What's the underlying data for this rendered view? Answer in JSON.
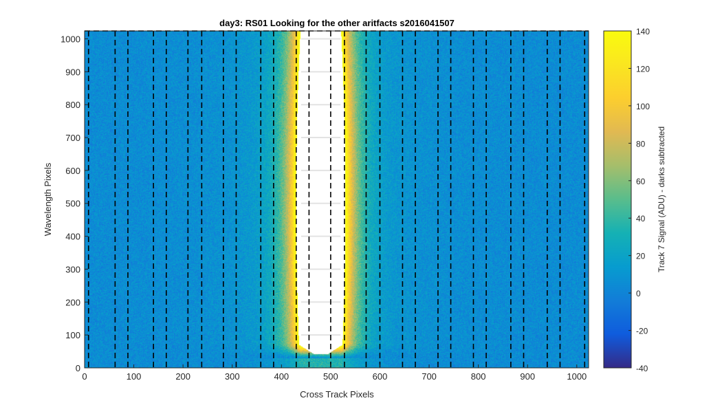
{
  "chart_data": {
    "type": "heatmap",
    "title": "day3: RS01  Looking for the other aritfacts  s2016041507",
    "xlabel": "Cross Track Pixels",
    "ylabel": "Wavelength Pixels",
    "xlim": [
      0,
      1024
    ],
    "ylim": [
      0,
      1024
    ],
    "xticks": [
      0,
      100,
      200,
      300,
      400,
      500,
      600,
      700,
      800,
      900,
      1000
    ],
    "yticks": [
      0,
      100,
      200,
      300,
      400,
      500,
      600,
      700,
      800,
      900,
      1000
    ],
    "xtick_labels": [
      "0",
      "100",
      "200",
      "300",
      "400",
      "500",
      "600",
      "700",
      "800",
      "900",
      "1000"
    ],
    "ytick_labels": [
      "0",
      "100",
      "200",
      "300",
      "400",
      "500",
      "600",
      "700",
      "800",
      "900",
      "1000"
    ],
    "colorbar": {
      "label": "Track 7 Signal (ADU) - darks subtracted",
      "range": [
        -40,
        140
      ],
      "ticks": [
        -40,
        -20,
        0,
        20,
        40,
        60,
        80,
        100,
        120,
        140
      ],
      "tick_labels": [
        "-40",
        "-20",
        "0",
        "20",
        "40",
        "60",
        "80",
        "100",
        "120",
        "140"
      ],
      "colormap": "parula"
    },
    "background_level": 5,
    "saturated_region": {
      "x_center": 480,
      "half_width_at_row_500": 48,
      "y_bottom": 30,
      "peak_level": 140
    },
    "dashed_lines_x": [
      8,
      62,
      88,
      140,
      166,
      210,
      238,
      282,
      308,
      358,
      384,
      430,
      456,
      500,
      528,
      572,
      600,
      646,
      672,
      718,
      744,
      790,
      816,
      866,
      892,
      940,
      966,
      1016
    ],
    "top_dashed_box": {
      "x_from": 0,
      "x_to": 1024,
      "y": 1024
    },
    "grid": false,
    "colors": {
      "background_blue": "#1f82c9",
      "saturated": "#ffffff",
      "edge_yellow": "#f9d22f",
      "dashes": "#000000"
    }
  }
}
